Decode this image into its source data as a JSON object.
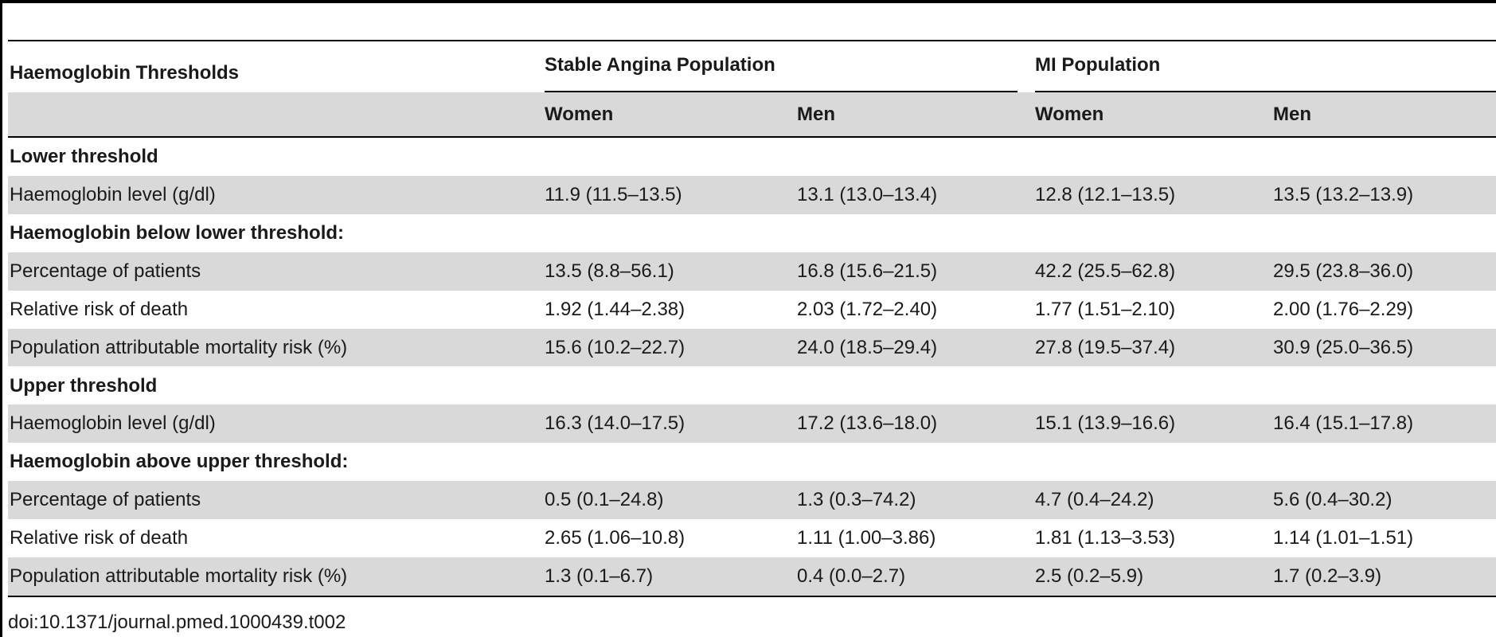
{
  "header": {
    "title": "Haemoglobin Thresholds",
    "groups": [
      "Stable Angina Population",
      "MI Population"
    ],
    "subgroups": [
      "Women",
      "Men",
      "Women",
      "Men"
    ]
  },
  "rows": [
    {
      "label": "Lower threshold",
      "section": true,
      "shade": false,
      "values": [
        "",
        "",
        "",
        ""
      ]
    },
    {
      "label": "Haemoglobin level (g/dl)",
      "section": false,
      "shade": true,
      "values": [
        "11.9 (11.5–13.5)",
        "13.1 (13.0–13.4)",
        "12.8 (12.1–13.5)",
        "13.5 (13.2–13.9)"
      ]
    },
    {
      "label": "Haemoglobin below lower threshold:",
      "section": true,
      "shade": false,
      "values": [
        "",
        "",
        "",
        ""
      ]
    },
    {
      "label": "Percentage of patients",
      "section": false,
      "shade": true,
      "values": [
        "13.5 (8.8–56.1)",
        "16.8 (15.6–21.5)",
        "42.2 (25.5–62.8)",
        "29.5 (23.8–36.0)"
      ]
    },
    {
      "label": "Relative risk of death",
      "section": false,
      "shade": false,
      "values": [
        "1.92 (1.44–2.38)",
        "2.03 (1.72–2.40)",
        "1.77 (1.51–2.10)",
        "2.00 (1.76–2.29)"
      ]
    },
    {
      "label": "Population attributable mortality risk (%)",
      "section": false,
      "shade": true,
      "values": [
        "15.6 (10.2–22.7)",
        "24.0 (18.5–29.4)",
        "27.8 (19.5–37.4)",
        "30.9 (25.0–36.5)"
      ]
    },
    {
      "label": "Upper threshold",
      "section": true,
      "shade": false,
      "values": [
        "",
        "",
        "",
        ""
      ]
    },
    {
      "label": "Haemoglobin level (g/dl)",
      "section": false,
      "shade": true,
      "values": [
        "16.3 (14.0–17.5)",
        "17.2 (13.6–18.0)",
        "15.1 (13.9–16.6)",
        "16.4 (15.1–17.8)"
      ]
    },
    {
      "label": "Haemoglobin above upper threshold:",
      "section": true,
      "shade": false,
      "values": [
        "",
        "",
        "",
        ""
      ]
    },
    {
      "label": "Percentage of patients",
      "section": false,
      "shade": true,
      "values": [
        "0.5 (0.1–24.8)",
        "1.3 (0.3–74.2)",
        "4.7 (0.4–24.2)",
        "5.6 (0.4–30.2)"
      ]
    },
    {
      "label": "Relative risk of death",
      "section": false,
      "shade": false,
      "values": [
        "2.65 (1.06–10.8)",
        "1.11 (1.00–3.86)",
        "1.81 (1.13–3.53)",
        "1.14 (1.01–1.51)"
      ]
    },
    {
      "label": "Population attributable mortality risk (%)",
      "section": false,
      "shade": true,
      "values": [
        "1.3 (0.1–6.7)",
        "0.4 (0.0–2.7)",
        "2.5 (0.2–5.9)",
        "1.7 (0.2–3.9)"
      ]
    }
  ],
  "footer": {
    "doi": "doi:10.1371/journal.pmed.1000439.t002"
  }
}
